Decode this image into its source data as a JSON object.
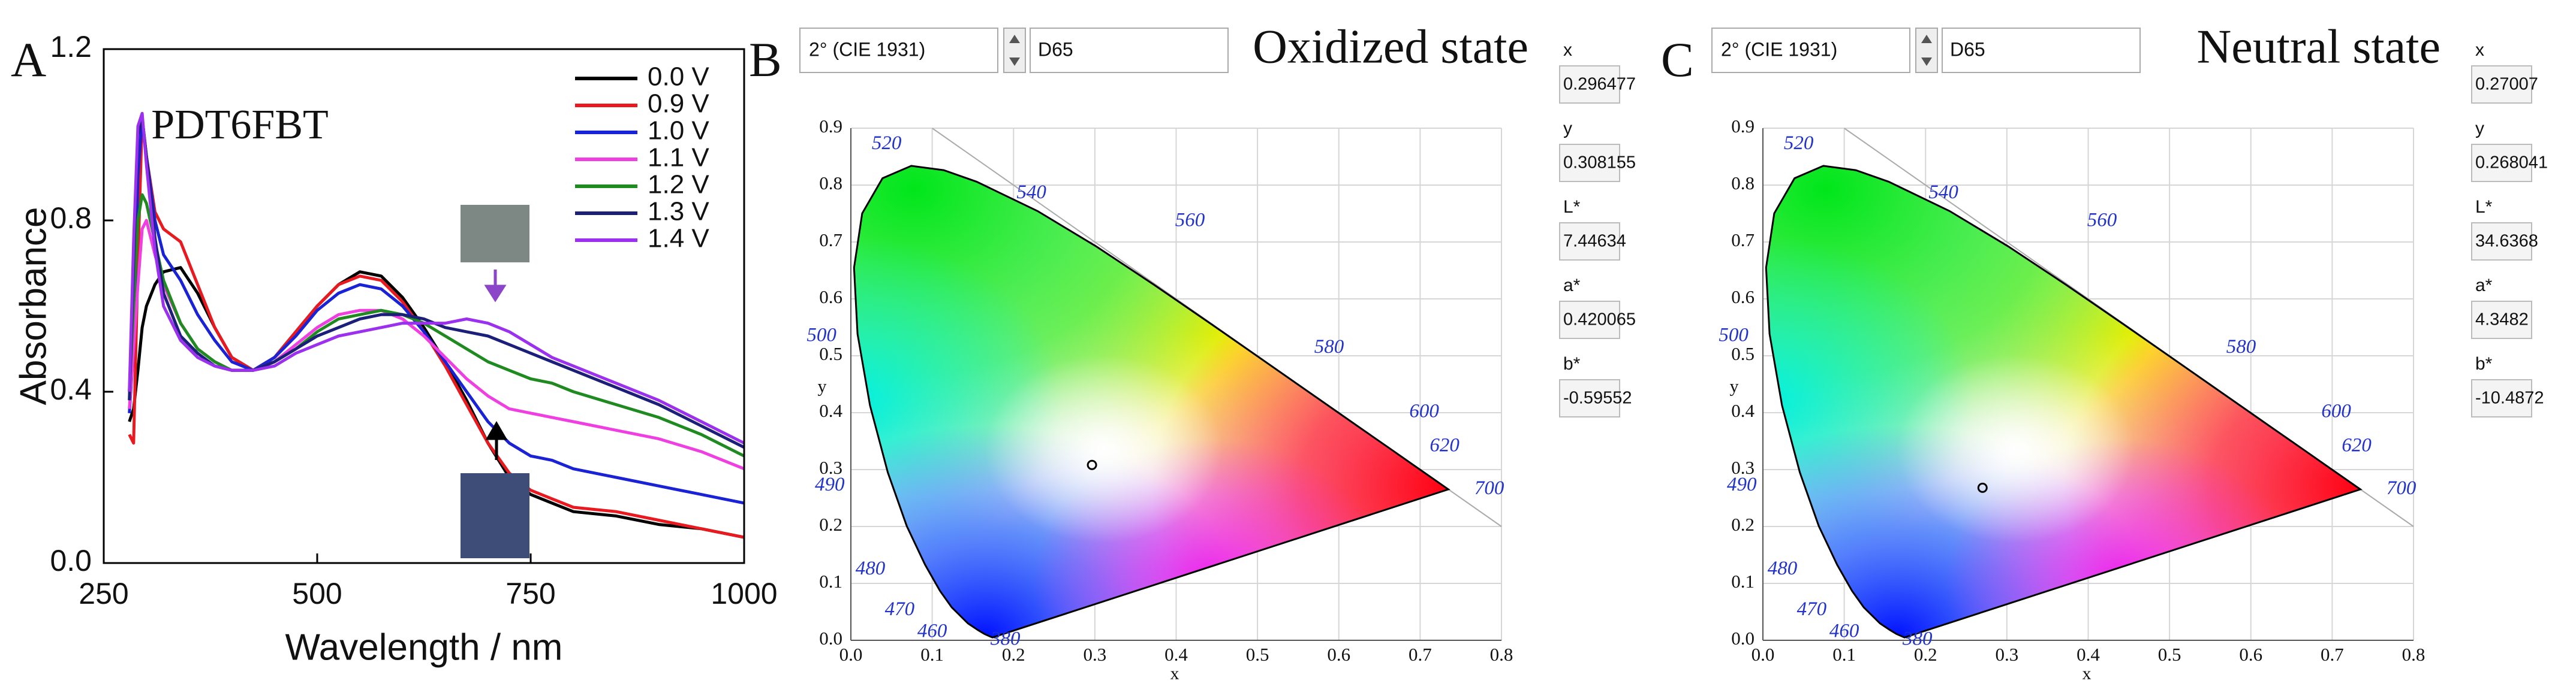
{
  "chart_data": [
    {
      "type": "line",
      "panel_label": "A",
      "title": "PDT6FBT",
      "xlabel": "Wavelength / nm",
      "ylabel": "Absorbance",
      "xlim": [
        250,
        1000
      ],
      "ylim": [
        0,
        1.2
      ],
      "xticks": [
        250,
        500,
        750,
        1000
      ],
      "yticks": [
        {
          "value": 0,
          "label": "0.0"
        },
        0.4,
        0.8,
        1.2
      ],
      "x": [
        280,
        285,
        290,
        295,
        300,
        310,
        320,
        340,
        360,
        380,
        400,
        425,
        450,
        475,
        500,
        525,
        550,
        575,
        600,
        625,
        650,
        675,
        700,
        725,
        750,
        775,
        800,
        850,
        900,
        950,
        1000
      ],
      "series": [
        {
          "name": "0.0 V",
          "color": "#000000",
          "values": [
            0.33,
            0.36,
            0.45,
            0.55,
            0.6,
            0.65,
            0.68,
            0.69,
            0.63,
            0.55,
            0.48,
            0.45,
            0.48,
            0.54,
            0.6,
            0.65,
            0.68,
            0.67,
            0.62,
            0.55,
            0.47,
            0.38,
            0.28,
            0.2,
            0.16,
            0.14,
            0.12,
            0.11,
            0.09,
            0.08,
            0.06
          ]
        },
        {
          "name": "0.9 V",
          "color": "#e8191f",
          "values": [
            0.3,
            0.28,
            0.7,
            1.04,
            0.95,
            0.82,
            0.78,
            0.75,
            0.65,
            0.55,
            0.48,
            0.45,
            0.48,
            0.54,
            0.6,
            0.65,
            0.67,
            0.66,
            0.61,
            0.54,
            0.46,
            0.37,
            0.28,
            0.21,
            0.17,
            0.15,
            0.13,
            0.12,
            0.1,
            0.08,
            0.06
          ]
        },
        {
          "name": "1.0 V",
          "color": "#1a22d6",
          "values": [
            0.35,
            0.5,
            0.9,
            1.04,
            0.95,
            0.8,
            0.72,
            0.66,
            0.58,
            0.52,
            0.47,
            0.45,
            0.48,
            0.53,
            0.59,
            0.63,
            0.65,
            0.64,
            0.6,
            0.54,
            0.47,
            0.4,
            0.33,
            0.28,
            0.25,
            0.24,
            0.22,
            0.2,
            0.18,
            0.16,
            0.14
          ]
        },
        {
          "name": "1.1 V",
          "color": "#ef3fe0",
          "values": [
            0.36,
            0.5,
            0.65,
            0.78,
            0.8,
            0.72,
            0.65,
            0.56,
            0.5,
            0.47,
            0.45,
            0.45,
            0.47,
            0.51,
            0.55,
            0.58,
            0.59,
            0.59,
            0.57,
            0.53,
            0.48,
            0.43,
            0.39,
            0.36,
            0.35,
            0.34,
            0.33,
            0.31,
            0.29,
            0.26,
            0.22
          ]
        },
        {
          "name": "1.2 V",
          "color": "#1f8a1f",
          "values": [
            0.4,
            0.6,
            0.8,
            0.86,
            0.84,
            0.75,
            0.66,
            0.56,
            0.5,
            0.47,
            0.45,
            0.45,
            0.47,
            0.5,
            0.54,
            0.57,
            0.58,
            0.59,
            0.58,
            0.56,
            0.53,
            0.5,
            0.47,
            0.45,
            0.43,
            0.42,
            0.4,
            0.37,
            0.34,
            0.3,
            0.25
          ]
        },
        {
          "name": "1.3 V",
          "color": "#1b1f7a",
          "values": [
            0.38,
            0.7,
            1.0,
            1.04,
            0.95,
            0.76,
            0.63,
            0.53,
            0.49,
            0.46,
            0.45,
            0.45,
            0.47,
            0.5,
            0.53,
            0.55,
            0.57,
            0.58,
            0.58,
            0.57,
            0.55,
            0.54,
            0.53,
            0.51,
            0.49,
            0.47,
            0.45,
            0.41,
            0.37,
            0.32,
            0.27
          ]
        },
        {
          "name": "1.4 V",
          "color": "#9b30ee",
          "values": [
            0.4,
            0.75,
            1.02,
            1.05,
            0.93,
            0.73,
            0.6,
            0.52,
            0.48,
            0.46,
            0.45,
            0.45,
            0.46,
            0.49,
            0.51,
            0.53,
            0.54,
            0.55,
            0.56,
            0.56,
            0.56,
            0.57,
            0.56,
            0.54,
            0.51,
            0.48,
            0.46,
            0.42,
            0.38,
            0.33,
            0.28
          ]
        }
      ]
    },
    {
      "type": "scatter",
      "panel_label": "B",
      "title": "Oxidized state",
      "observer": "2° (CIE 1931)",
      "illuminant": "D65",
      "xlabel": "x",
      "ylabel": "y",
      "xlim": [
        0,
        0.8
      ],
      "ylim": [
        0,
        0.9
      ],
      "xticks": [
        {
          "value": 0,
          "label": "0.0"
        },
        0.1,
        0.2,
        0.3,
        0.4,
        0.5,
        0.6,
        0.7,
        0.8
      ],
      "yticks": [
        {
          "value": 0,
          "label": "0.0"
        },
        0.1,
        0.2,
        0.3,
        0.4,
        0.5,
        0.6,
        0.7,
        0.8,
        0.9
      ],
      "grid": true,
      "locus_labels": [
        520,
        540,
        560,
        580,
        600,
        620,
        700,
        500,
        490,
        480,
        470,
        460,
        380
      ],
      "readout": {
        "labels": [
          "x",
          "y",
          "L*",
          "a*",
          "b*"
        ],
        "values": [
          0.296477,
          0.308155,
          7.44634,
          0.420065,
          -0.59552
        ]
      }
    },
    {
      "type": "scatter",
      "panel_label": "C",
      "title": "Neutral state",
      "observer": "2° (CIE 1931)",
      "illuminant": "D65",
      "xlabel": "x",
      "ylabel": "y",
      "xlim": [
        0,
        0.8
      ],
      "ylim": [
        0,
        0.9
      ],
      "xticks": [
        {
          "value": 0,
          "label": "0.0"
        },
        0.1,
        0.2,
        0.3,
        0.4,
        0.5,
        0.6,
        0.7,
        0.8
      ],
      "yticks": [
        {
          "value": 0,
          "label": "0.0"
        },
        0.1,
        0.2,
        0.3,
        0.4,
        0.5,
        0.6,
        0.7,
        0.8,
        0.9
      ],
      "grid": true,
      "locus_labels": [
        520,
        540,
        560,
        580,
        600,
        620,
        700,
        500,
        490,
        480,
        470,
        460,
        380
      ],
      "readout": {
        "labels": [
          "x",
          "y",
          "L*",
          "a*",
          "b*"
        ],
        "values": [
          0.27007,
          0.268041,
          34.6368,
          4.3482,
          -10.4872
        ]
      }
    }
  ]
}
